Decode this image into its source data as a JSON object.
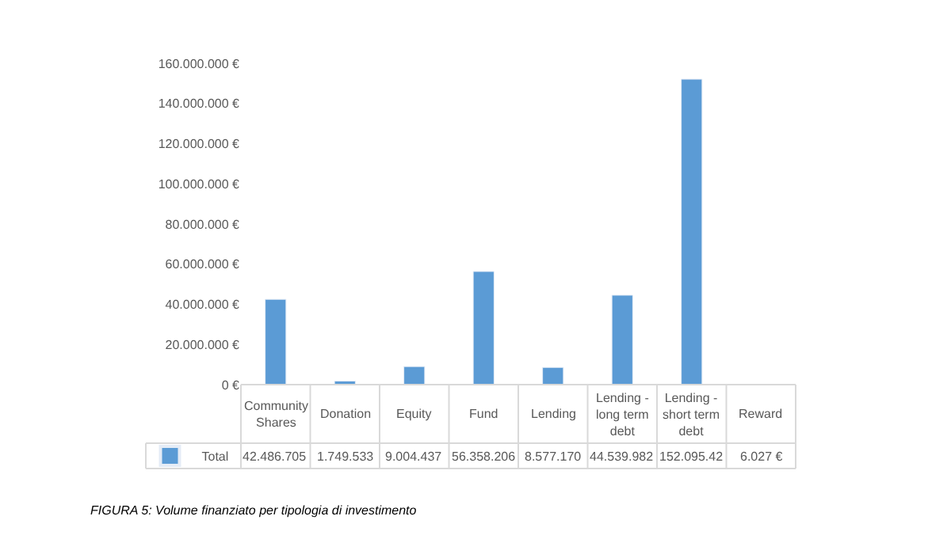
{
  "chart_data": {
    "type": "bar",
    "categories": [
      "Community Shares",
      "Donation",
      "Equity",
      "Fund",
      "Lending",
      "Lending - long term debt",
      "Lending - short term debt",
      "Reward"
    ],
    "series": [
      {
        "name": "Total",
        "color": "#5b9bd5",
        "values": [
          42486705,
          1749533,
          9004437,
          56358206,
          8577170,
          44539982,
          152095420,
          6027
        ],
        "value_labels": [
          "42.486.705",
          "1.749.533",
          "9.004.437",
          "56.358.206",
          "8.577.170",
          "44.539.982",
          "152.095.42",
          "6.027 €"
        ]
      }
    ],
    "ylim": [
      0,
      160000000
    ],
    "yticks": [
      {
        "value": 0,
        "label": "0 €"
      },
      {
        "value": 20000000,
        "label": "20.000.000 €"
      },
      {
        "value": 40000000,
        "label": "40.000.000 €"
      },
      {
        "value": 60000000,
        "label": "60.000.000 €"
      },
      {
        "value": 80000000,
        "label": "80.000.000 €"
      },
      {
        "value": 100000000,
        "label": "100.000.000 €"
      },
      {
        "value": 120000000,
        "label": "120.000.000 €"
      },
      {
        "value": 140000000,
        "label": "140.000.000 €"
      },
      {
        "value": 160000000,
        "label": "160.000.000 €"
      }
    ],
    "grid": false,
    "legend": "bottom",
    "annotations": [
      "FIGURA 5: Volume finanziato per tipologia di investimento"
    ]
  }
}
